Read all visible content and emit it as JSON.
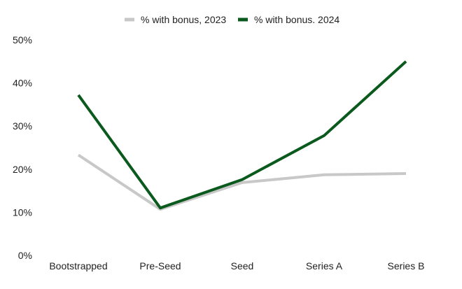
{
  "chart_data": {
    "type": "line",
    "title": "",
    "xlabel": "",
    "ylabel": "",
    "categories": [
      "Bootstrapped",
      "Pre-Seed",
      "Seed",
      "Series A",
      "Series B"
    ],
    "ylim": [
      0,
      50
    ],
    "yticks": [
      0,
      10,
      20,
      30,
      40,
      50
    ],
    "ytick_labels": [
      "0%",
      "10%",
      "20%",
      "30%",
      "40%",
      "50%"
    ],
    "grid": false,
    "legend_position": "top-center",
    "series": [
      {
        "name": "% with bonus, 2023",
        "color": "#c8c8c8",
        "values": [
          23.3,
          10.7,
          16.9,
          18.7,
          19.0
        ]
      },
      {
        "name": "% with bonus. 2024",
        "color": "#0b5a1d",
        "values": [
          37.2,
          11.0,
          17.6,
          27.8,
          45.0
        ]
      }
    ]
  }
}
